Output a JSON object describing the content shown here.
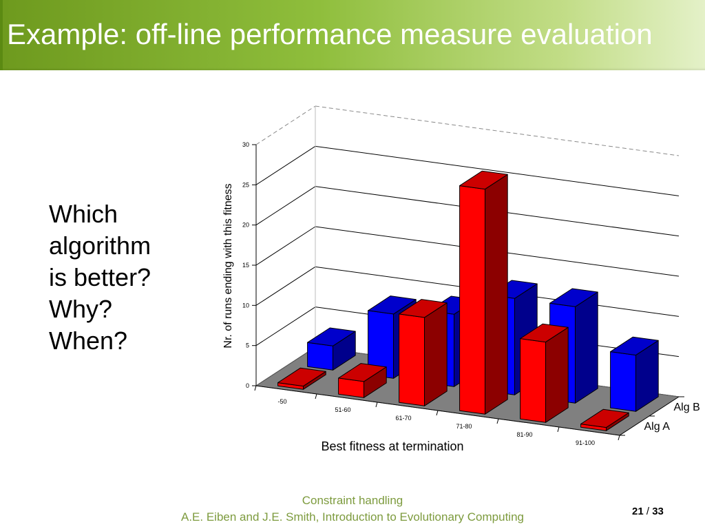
{
  "slide": {
    "title": "Example: off-line performance measure evaluation",
    "question_lines": [
      "Which",
      "algorithm",
      "is better?",
      "Why?",
      "When?"
    ],
    "footer_topic": "Constraint handling",
    "footer_reference": "A.E. Eiben and J.E. Smith, Introduction to Evolutionary Computing",
    "page_current": "21",
    "page_separator": "/",
    "page_total": "33"
  },
  "colors": {
    "title_gradient_start": "#6e9a1e",
    "title_gradient_end": "#e4f1c8",
    "alg_a": "#ff0000",
    "alg_b": "#0000ff",
    "floor": "#808080",
    "footer_text": "#7d9b3e"
  },
  "chart_data": {
    "type": "bar",
    "subtype": "3d-clustered-depth",
    "categories": [
      "-50",
      "51-60",
      "61-70",
      "71-80",
      "81-90",
      "91-100"
    ],
    "series": [
      {
        "name": "Alg A",
        "color": "#ff0000",
        "values": [
          0,
          2,
          11,
          28,
          10,
          0
        ]
      },
      {
        "name": "Alg B",
        "color": "#0000ff",
        "values": [
          3,
          8,
          9,
          12,
          12,
          7
        ]
      }
    ],
    "xlabel": "Best fitness at termination",
    "ylabel": "Nr. of runs ending with this fitness",
    "yticks": [
      0,
      5,
      10,
      15,
      20,
      25,
      30
    ],
    "ylim": [
      0,
      30
    ],
    "grid": true,
    "series_labels_position": "depth-axis-right"
  }
}
